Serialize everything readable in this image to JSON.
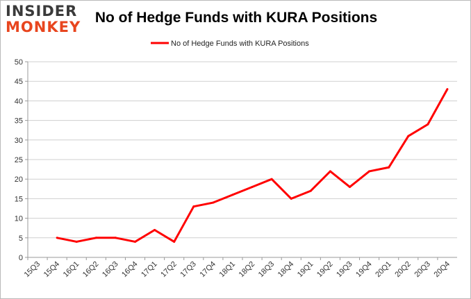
{
  "logo": {
    "line1": "INSIDER",
    "line2": "MONKEY"
  },
  "chart_data": {
    "type": "line",
    "title": "No of Hedge Funds with KURA Positions",
    "xlabel": "",
    "ylabel": "",
    "categories": [
      "15Q3",
      "15Q4",
      "16Q1",
      "16Q2",
      "16Q3",
      "16Q4",
      "17Q1",
      "17Q2",
      "17Q3",
      "17Q4",
      "18Q1",
      "18Q2",
      "18Q3",
      "18Q4",
      "19Q1",
      "19Q2",
      "19Q3",
      "19Q4",
      "20Q1",
      "20Q2",
      "20Q3",
      "20Q4"
    ],
    "series": [
      {
        "name": "No of Hedge Funds with KURA Positions",
        "color": "#ff0000",
        "values": [
          null,
          5,
          4,
          5,
          5,
          4,
          7,
          4,
          13,
          14,
          16,
          18,
          20,
          15,
          17,
          22,
          18,
          22,
          23,
          31,
          34,
          43
        ]
      }
    ],
    "ylim": [
      0,
      50
    ],
    "yticks": [
      0,
      5,
      10,
      15,
      20,
      25,
      30,
      35,
      40,
      45,
      50
    ],
    "grid": true,
    "legend_position": "top-center"
  }
}
